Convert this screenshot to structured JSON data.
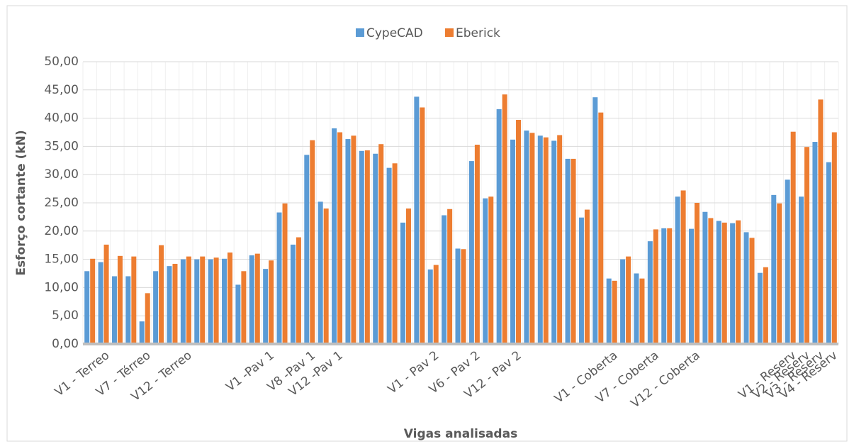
{
  "chart_data": {
    "type": "bar",
    "x_label": "Vigas analisadas",
    "y_label": "Esforço cortante (kN)",
    "categories": [
      null,
      "V1 - Terreo",
      null,
      null,
      "V7 - Térreo",
      null,
      null,
      "V12 - Terreo",
      null,
      null,
      null,
      null,
      null,
      "V1 -Pav 1",
      null,
      null,
      "V8 -Pav 1",
      null,
      "V12 -Pav 1",
      null,
      null,
      null,
      null,
      null,
      null,
      "V1 - Pav 2",
      null,
      null,
      "V6 - Pav 2",
      null,
      null,
      "V12 - Pav 2",
      null,
      null,
      null,
      null,
      null,
      null,
      "V1 - Coberta",
      null,
      null,
      "V7 - Coberta",
      null,
      null,
      "V12 - Coberta",
      null,
      null,
      null,
      null,
      null,
      null,
      "V1 - Reserv",
      "V2 - Reserv",
      "V3 - Reserv",
      "V4 - Reserv"
    ],
    "series": [
      {
        "name": "CypeCAD",
        "color": "#5b9bd5",
        "values": [
          12.9,
          14.5,
          12.0,
          12.0,
          4.0,
          12.9,
          13.8,
          15.0,
          15.0,
          15.0,
          15.1,
          10.5,
          15.7,
          13.3,
          23.3,
          17.6,
          33.5,
          25.2,
          38.2,
          36.3,
          34.2,
          33.7,
          31.2,
          21.5,
          43.8,
          13.2,
          22.8,
          16.9,
          32.4,
          25.8,
          41.6,
          36.2,
          37.8,
          36.9,
          36.0,
          32.8,
          22.4,
          43.7,
          11.6,
          15.0,
          12.5,
          18.2,
          20.5,
          26.1,
          20.4,
          23.4,
          21.8,
          21.4,
          19.8,
          12.6,
          26.4,
          29.1,
          26.1,
          35.8,
          32.2
        ]
      },
      {
        "name": "Eberick",
        "color": "#ed7d31",
        "values": [
          15.1,
          17.6,
          15.6,
          15.5,
          9.0,
          17.5,
          14.2,
          15.5,
          15.5,
          15.3,
          16.2,
          12.9,
          16.0,
          14.8,
          24.9,
          18.9,
          36.1,
          24.0,
          37.5,
          36.9,
          34.3,
          35.4,
          32.0,
          24.0,
          41.9,
          14.0,
          23.9,
          16.8,
          35.3,
          26.1,
          44.2,
          39.7,
          37.4,
          36.6,
          37.0,
          32.8,
          23.8,
          41.0,
          11.2,
          15.5,
          11.6,
          20.3,
          20.5,
          27.2,
          25.0,
          22.3,
          21.5,
          21.9,
          18.8,
          13.6,
          24.9,
          37.6,
          34.9,
          43.3,
          37.5
        ]
      }
    ],
    "ylim": [
      0,
      50
    ],
    "yticks": [
      {
        "value": 0,
        "label": "0,00"
      },
      {
        "value": 5,
        "label": "5,00"
      },
      {
        "value": 10,
        "label": "10,00"
      },
      {
        "value": 15,
        "label": "15,00"
      },
      {
        "value": 20,
        "label": "20,00"
      },
      {
        "value": 25,
        "label": "25,00"
      },
      {
        "value": 30,
        "label": "30,00"
      },
      {
        "value": 35,
        "label": "35,00"
      },
      {
        "value": 40,
        "label": "40,00"
      },
      {
        "value": 45,
        "label": "45,00"
      },
      {
        "value": 50,
        "label": "50,00"
      }
    ],
    "grid": true,
    "legend": "top"
  }
}
